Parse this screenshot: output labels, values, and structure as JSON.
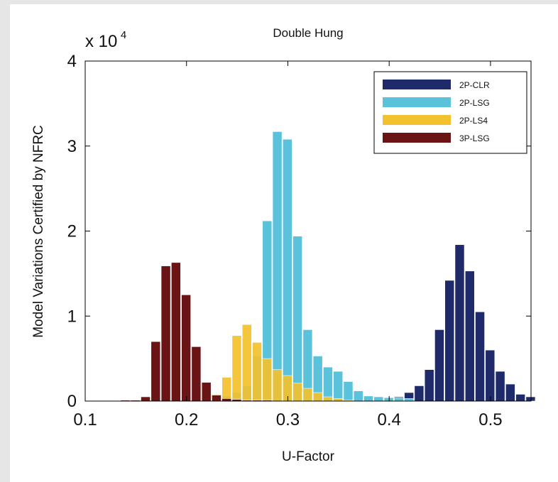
{
  "chart_data": {
    "type": "bar",
    "title": "Double Hung",
    "xlabel": "U-Factor",
    "ylabel": "Model Variations Certified by NFRC",
    "y_scale_base": "x 10",
    "y_scale_exponent": "4",
    "xlim": [
      0.1,
      0.54
    ],
    "ylim": [
      0,
      40000
    ],
    "xticks": [
      0.1,
      0.2,
      0.3,
      0.4,
      0.5
    ],
    "xtick_labels": [
      "0.1",
      "0.2",
      "0.3",
      "0.4",
      "0.5"
    ],
    "yticks": [
      0,
      10000,
      20000,
      30000,
      40000
    ],
    "ytick_labels": [
      "0",
      "1",
      "2",
      "3",
      "4"
    ],
    "bin_width": 0.01,
    "legend_position": "top-right",
    "grid": false,
    "series": [
      {
        "name": "2P-CLR",
        "color": "#1f2a6b",
        "x": [
          0.38,
          0.39,
          0.4,
          0.41,
          0.42,
          0.43,
          0.44,
          0.45,
          0.46,
          0.47,
          0.48,
          0.49,
          0.5,
          0.51,
          0.52,
          0.53,
          0.54
        ],
        "values": [
          100,
          200,
          300,
          500,
          1000,
          1800,
          3700,
          8400,
          14200,
          18400,
          15300,
          10500,
          6000,
          3500,
          2000,
          800,
          500
        ]
      },
      {
        "name": "2P-LSG",
        "color": "#5bc2dc",
        "x": [
          0.22,
          0.23,
          0.24,
          0.25,
          0.26,
          0.27,
          0.28,
          0.29,
          0.3,
          0.31,
          0.32,
          0.33,
          0.34,
          0.35,
          0.36,
          0.37,
          0.38,
          0.39,
          0.4,
          0.41,
          0.42
        ],
        "values": [
          200,
          300,
          600,
          1000,
          1800,
          5300,
          21200,
          31700,
          30800,
          19400,
          8400,
          5300,
          4000,
          3500,
          2300,
          1200,
          600,
          500,
          400,
          400,
          300
        ]
      },
      {
        "name": "2P-LS4",
        "color": "#f2c12e",
        "x": [
          0.21,
          0.22,
          0.23,
          0.24,
          0.25,
          0.26,
          0.27,
          0.28,
          0.29,
          0.3,
          0.31,
          0.32,
          0.33,
          0.34,
          0.35,
          0.36
        ],
        "values": [
          100,
          300,
          800,
          2800,
          7700,
          9000,
          6900,
          5000,
          3700,
          3000,
          2100,
          1500,
          1000,
          500,
          300,
          100
        ]
      },
      {
        "name": "3P-LSG",
        "color": "#6b1416",
        "x": [
          0.14,
          0.15,
          0.16,
          0.17,
          0.18,
          0.19,
          0.2,
          0.21,
          0.22,
          0.23,
          0.24,
          0.25,
          0.26,
          0.27,
          0.28
        ],
        "values": [
          100,
          100,
          500,
          7000,
          15900,
          16300,
          12500,
          6400,
          2200,
          700,
          300,
          200,
          100,
          100,
          100
        ]
      }
    ]
  }
}
